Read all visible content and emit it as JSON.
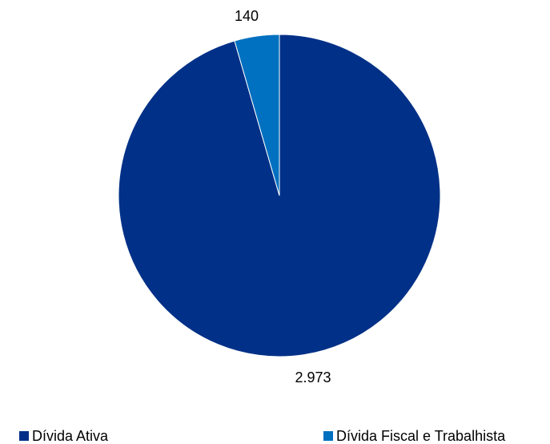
{
  "chart_data": {
    "type": "pie",
    "categories": [
      "Dívida Ativa",
      "Dívida Fiscal e Trabalhista"
    ],
    "values": [
      2973,
      140
    ],
    "data_labels": [
      "2.973",
      "140"
    ],
    "colors": [
      "#003087",
      "#0070C0"
    ],
    "legend_position": "bottom"
  }
}
